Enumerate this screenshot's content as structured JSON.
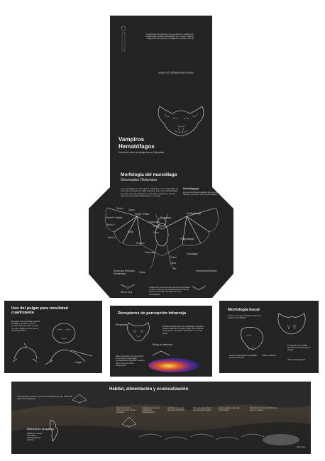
{
  "cover": {
    "title_line1": "Vampiros",
    "title_line2": "Hematófagos",
    "subtitle": "Estudio de caso de divulgación en Quiróptera",
    "back_heading": "Vampiros Hematófagos: Un Estudio",
    "back_paragraph": "de caso sobre la morfología y biología del murciélago vampiro común, sus adaptaciones para la alimentación con sangre y su papel en los ecosistemas americanos."
  },
  "morphology": {
    "title": "Morfología del murciélago",
    "species": "Desmodus Rotundus",
    "intro": "Los murciélagos son los únicos mamíferos con la capacidad de volar. En el mundo, de 1400 especies, solo 3 son hematófagas. En vista a pie. Es especial con sus largos pulgares y cuerpo ágil que les permite desplazarse en el suelo.",
    "side_heading": "Hemisfagogía",
    "side_text": "Es una membrana elástica que une los dedos de la mano y las extremidades.",
    "labels": {
      "pulgar": "Pulgar / Pollex",
      "carpo": "Carpo",
      "dedo2": "Dedo II",
      "dedo3": "Dedo III / Medio",
      "dedo4": "Dedo IV",
      "dedo5": "Dedo V",
      "radio": "Radio",
      "codo": "Codo",
      "humero": "Húmero",
      "uropatagio": "Uropatagio",
      "femur": "Fémur",
      "tibia": "Tibia",
      "pie": "Pie",
      "calcar": "Calcar",
      "oreja": "Oreja",
      "hoja": "Hoja nasal",
      "plagiopatagio": "Plagiopatagio",
      "dactilopatagio": "Dactilopatagio",
      "propatagio": "Propatagio",
      "hoja_nasal": "Hoja nasal"
    },
    "bottom_text": "Cuenta con una forma de vida en la oscuridad y hay en todo tipo de manifestaciones tejidos, la presencia más importante de otros murciélagos.",
    "footnote_left": "Desmodus Rotundus Hematófago",
    "footnote_right": "Desmodus Rotundus",
    "wingspan": "35 cm",
    "weight": "40 g"
  },
  "infrared": {
    "title": "Receptores de percepción infrarroja",
    "text": "Estudios indican que los murciélagos vampiros pueden detectar su presa desde una distancia cercana con receptores infrarrojos en su hoja nasal.",
    "caption": "Estos receptores se concentran en su nariz y hoja nasal, permitiéndoles detectar zonas de calor como los vasos sanguíneos.",
    "label_a": "Receptores",
    "label_b": "Rango de detección"
  },
  "thumb": {
    "title": "Uso del pulgar para movilidad cuadrúpeda",
    "text": "El pulgar del murciélago vampiro es largo y robusto, lo que le permite caminar, saltar y trepar con gran agilidad por el suelo y otras superficies.",
    "label": "Pulgar"
  },
  "oral": {
    "title": "Morfología bucal",
    "text": "Tienen un juego de dientes incisivos y caninos muy afilados.",
    "caption_a": "Incisivos superiores muy afilados para cortar la piel.",
    "caption_b": "La lengua tiene canales laterales por donde pasa la sangre.",
    "caption_c": "Caninos afilados",
    "caption_d": "Saliva anticoagulante"
  },
  "habitat": {
    "title": "Hábitat, alimentación y ecolocalización",
    "intro": "Son animales nocturnos y viven en colonias que van desde 20 hasta 100 individuos.",
    "dist_title": "Distribución geográfica",
    "dist_text": "Habitan en zonas tropicales y subtropicales de América.",
    "step1": "Salen de noche a cazar y buscan presas dormidas.",
    "step2": "Localizan a su presa mediante la ecolocalización.",
    "step3": "Aterrizan cerca y se acercan caminando.",
    "step4": "Con sus dientes hace una pequeña incisión.",
    "step5": "Lame la sangre que sale de la herida.",
    "step6": "Puede beber hasta el 50% de su peso en sangre.",
    "footer": "Desmodus"
  }
}
